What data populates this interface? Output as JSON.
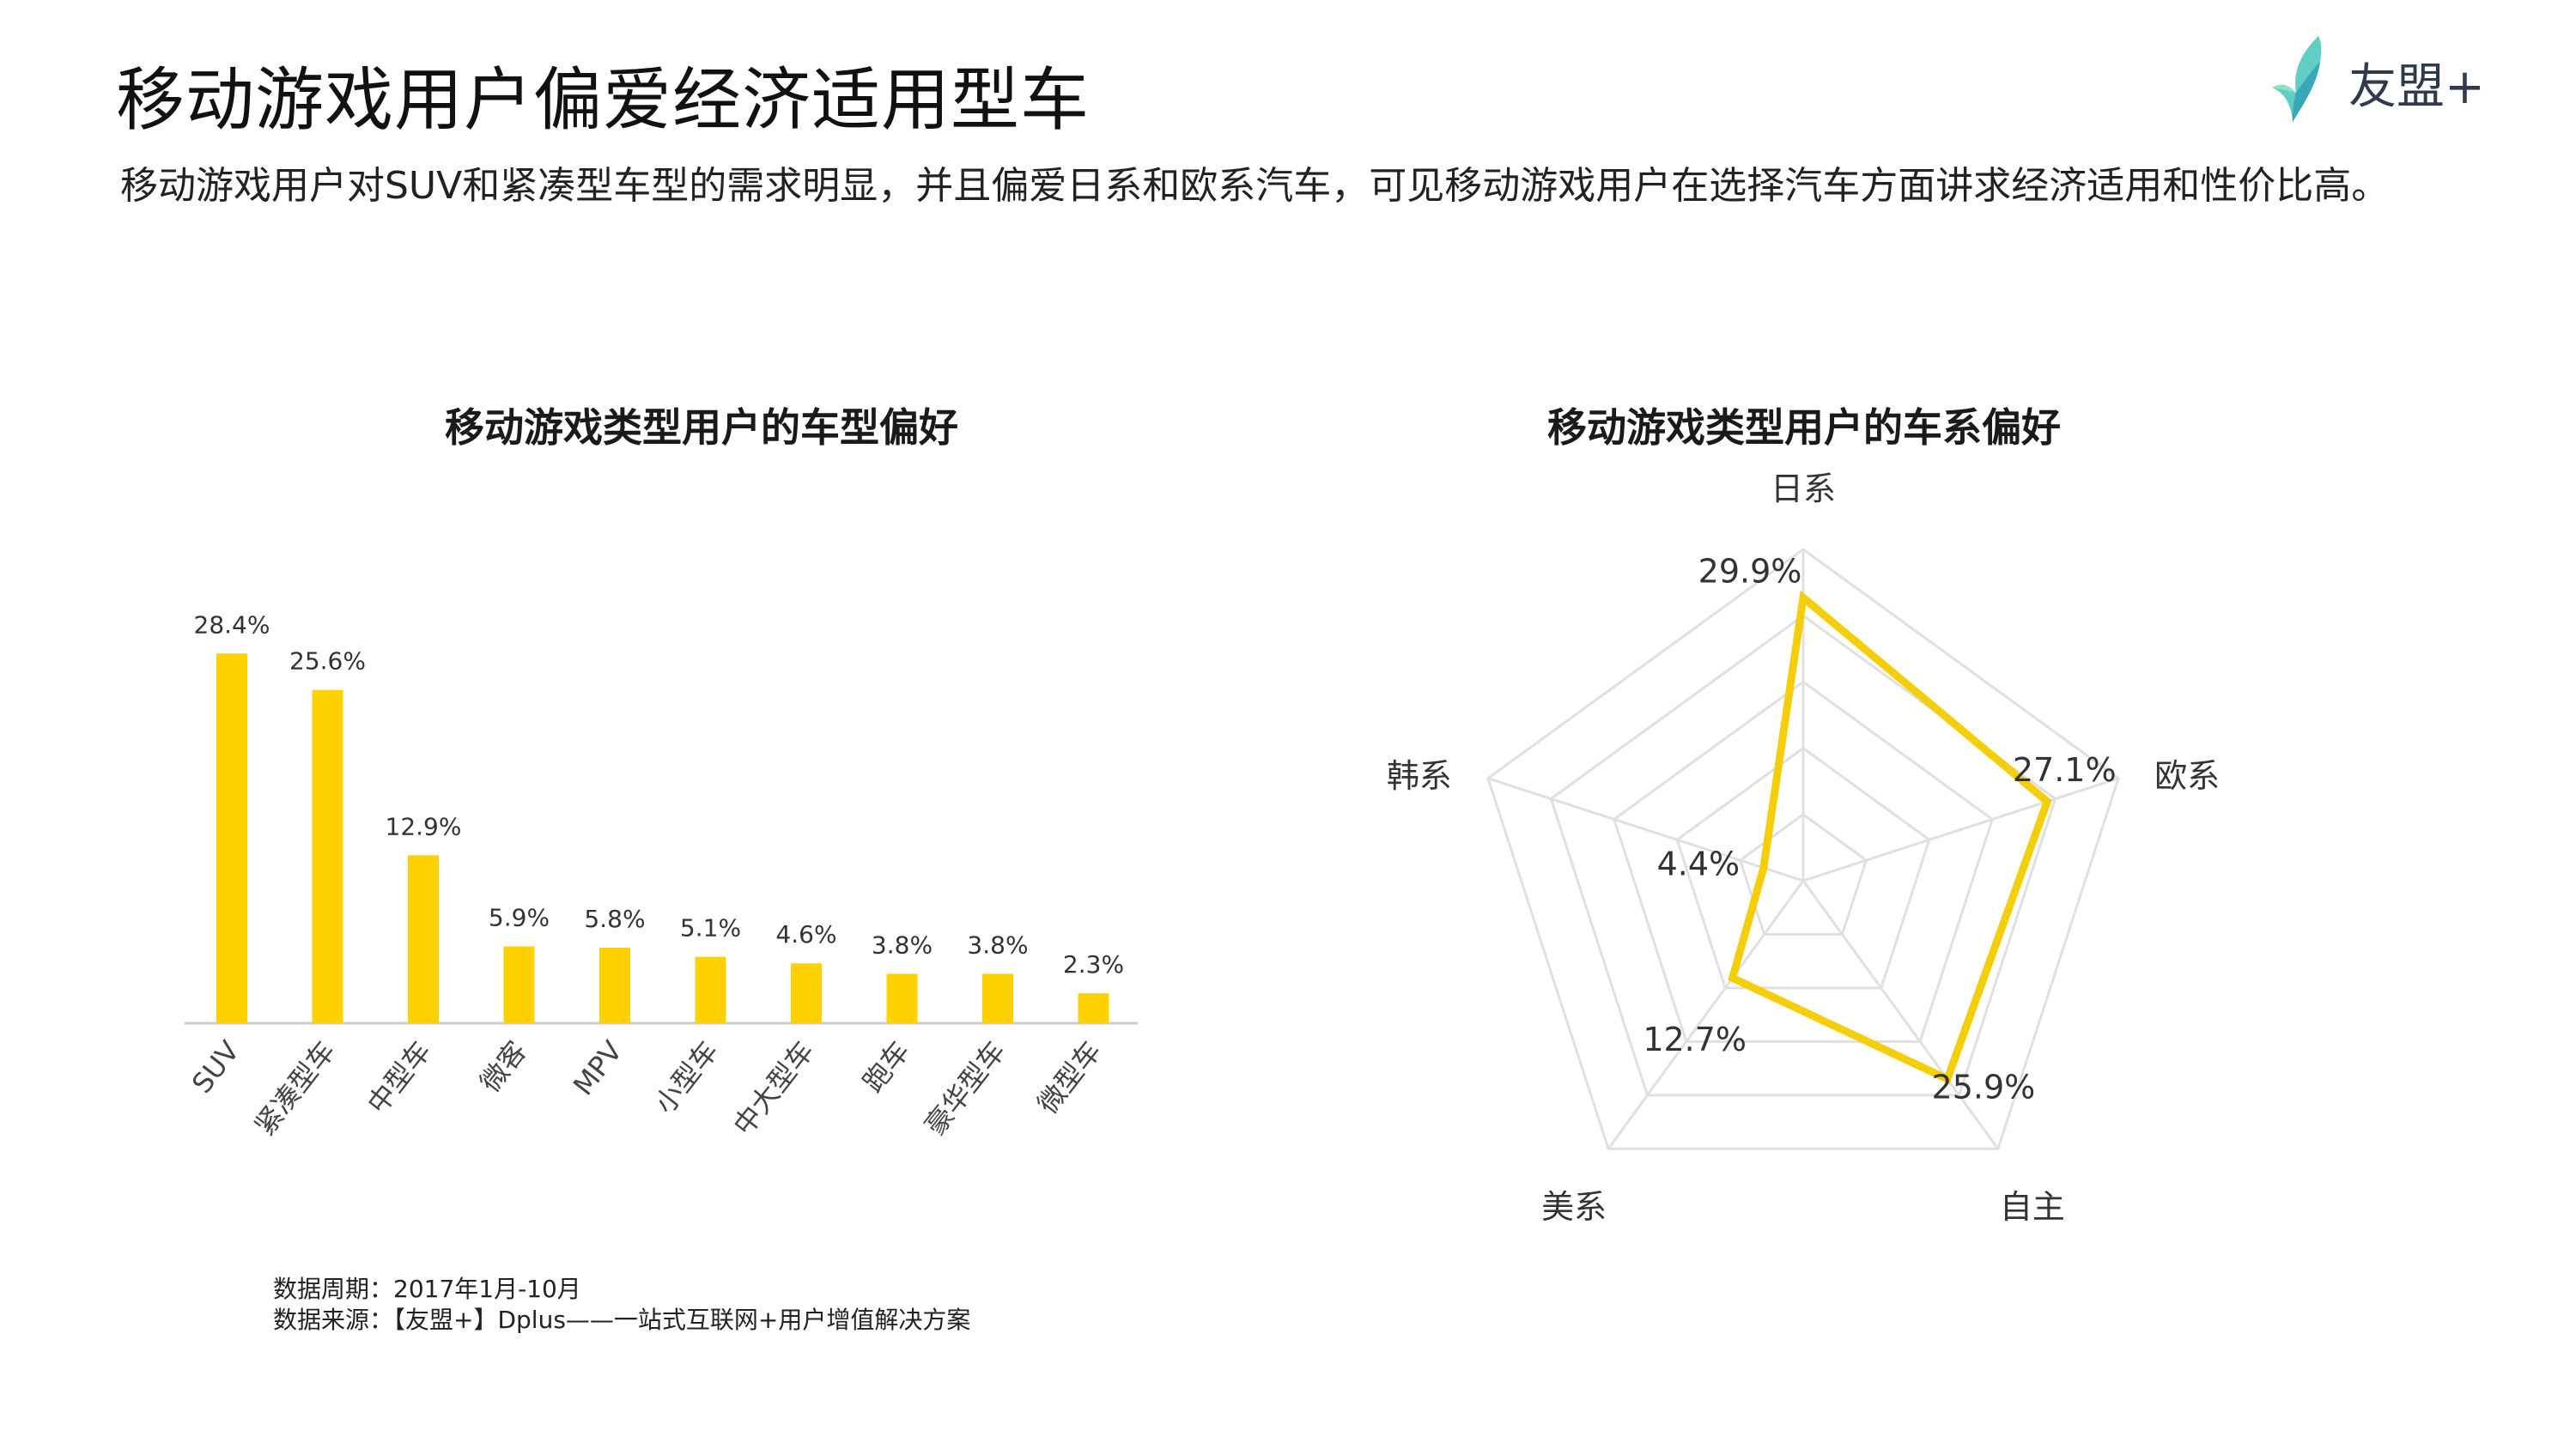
{
  "page": {
    "title": "移动游戏用户偏爱经济适用型车",
    "subtitle": "移动游戏用户对SUV和紧凑型车型的需求明显，并且偏爱日系和欧系汽车，可见移动游戏用户在选择汽车方面讲求经济适用和性价比高。"
  },
  "logo": {
    "text": "友盟+",
    "icon": "umeng-bird-icon"
  },
  "colors": {
    "accent": "#FFD100",
    "radar_line": "#F5CE0A",
    "grid": "#E0E0E0",
    "axis": "#CCCCCC"
  },
  "chart_data": [
    {
      "type": "bar",
      "title": "移动游戏类型用户的车型偏好",
      "categories": [
        "SUV",
        "紧凑型车",
        "中型车",
        "微客",
        "MPV",
        "小型车",
        "中大型车",
        "跑车",
        "豪华型车",
        "微型车"
      ],
      "values": [
        28.4,
        25.6,
        12.9,
        5.9,
        5.8,
        5.1,
        4.6,
        3.8,
        3.8,
        2.3
      ],
      "labels": [
        "28.4%",
        "25.6%",
        "12.9%",
        "5.9%",
        "5.8%",
        "5.1%",
        "4.6%",
        "3.8%",
        "3.8%",
        "2.3%"
      ],
      "ylim": [
        0,
        30
      ],
      "grid": false,
      "legend": "none"
    },
    {
      "type": "radar",
      "title": "移动游戏类型用户的车系偏好",
      "categories": [
        "日系",
        "欧系",
        "自主",
        "美系",
        "韩系"
      ],
      "values": [
        29.9,
        27.1,
        25.9,
        12.7,
        4.4
      ],
      "labels": [
        "29.9%",
        "27.1%",
        "25.9%",
        "12.7%",
        "4.4%"
      ],
      "rlim": [
        0,
        35
      ],
      "grid_rings": 5,
      "legend": "none"
    }
  ],
  "footnote": {
    "period": "数据周期：2017年1月-10月",
    "source": "数据来源：【友盟+】Dplus——一站式互联网+用户增值解决方案"
  }
}
